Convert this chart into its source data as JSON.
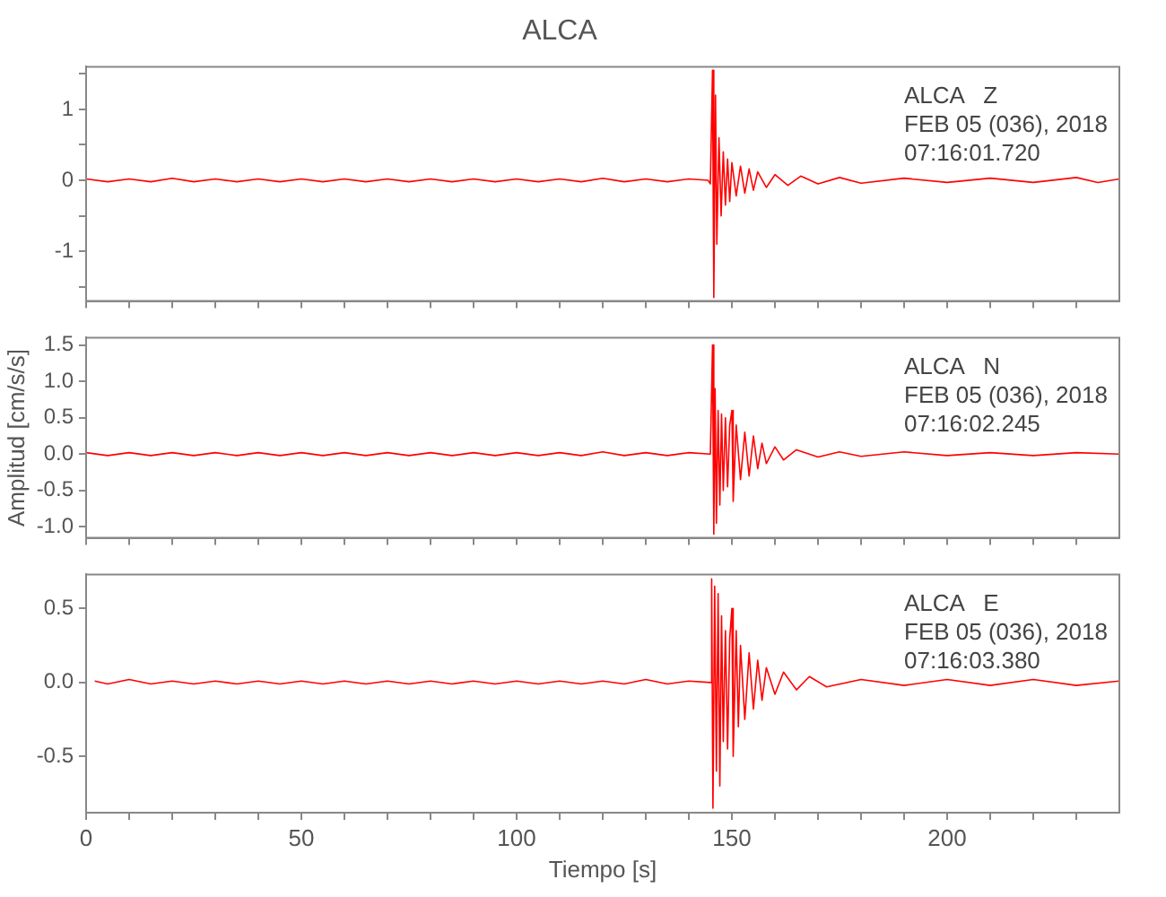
{
  "chart_data": [
    {
      "type": "line",
      "title": "ALCA",
      "annotations": [
        "ALCA   Z",
        "FEB 05 (036), 2018",
        "07:16:01.720"
      ],
      "xlim": [
        0,
        240
      ],
      "xticks": [
        0,
        {
          "value": 10,
          "label": null
        },
        {
          "value": 20,
          "label": null
        },
        {
          "value": 30,
          "label": null
        },
        {
          "value": 40,
          "label": null
        },
        50,
        {
          "value": 60,
          "label": null
        },
        {
          "value": 70,
          "label": null
        },
        {
          "value": 80,
          "label": null
        },
        {
          "value": 90,
          "label": null
        },
        100,
        {
          "value": 110,
          "label": null
        },
        {
          "value": 120,
          "label": null
        },
        {
          "value": 130,
          "label": null
        },
        {
          "value": 140,
          "label": null
        },
        150,
        {
          "value": 160,
          "label": null
        },
        {
          "value": 170,
          "label": null
        },
        {
          "value": 180,
          "label": null
        },
        {
          "value": 190,
          "label": null
        },
        200,
        {
          "value": 210,
          "label": null
        },
        {
          "value": 220,
          "label": null
        },
        {
          "value": 230,
          "label": null
        }
      ],
      "ylim": [
        -1.7,
        1.6
      ],
      "yticks": [
        {
          "value": -1.5,
          "label": null
        },
        -1,
        {
          "value": -0.5,
          "label": null
        },
        0,
        {
          "value": 0.5,
          "label": null
        },
        1,
        {
          "value": 1.5,
          "label": null
        }
      ],
      "tick_labels": "y",
      "series": [
        {
          "color": "#ff0000",
          "x": [
            0,
            5,
            10,
            15,
            20,
            25,
            30,
            35,
            40,
            45,
            50,
            55,
            60,
            65,
            70,
            75,
            80,
            85,
            90,
            95,
            100,
            105,
            110,
            115,
            120,
            125,
            130,
            135,
            140,
            144.5,
            145,
            145.5,
            145.8,
            146.2,
            146.5,
            147,
            147.5,
            148,
            148.5,
            149,
            149.5,
            150,
            151,
            152,
            153,
            154,
            155,
            156,
            158,
            160,
            163,
            166,
            170,
            175,
            180,
            190,
            200,
            210,
            220,
            230,
            235,
            240
          ],
          "values": [
            0.02,
            -0.02,
            0.02,
            -0.02,
            0.03,
            -0.02,
            0.02,
            -0.02,
            0.02,
            -0.02,
            0.02,
            -0.02,
            0.02,
            -0.02,
            0.02,
            -0.02,
            0.02,
            -0.02,
            0.02,
            -0.02,
            0.02,
            -0.02,
            0.02,
            -0.02,
            0.03,
            -0.02,
            0.02,
            -0.02,
            0.02,
            0,
            -0.05,
            1.55,
            -1.65,
            1.2,
            -0.9,
            0.6,
            -0.5,
            0.4,
            -0.35,
            0.3,
            -0.3,
            0.25,
            -0.22,
            0.2,
            -0.18,
            0.16,
            -0.14,
            0.12,
            -0.1,
            0.08,
            -0.07,
            0.06,
            -0.05,
            0.04,
            -0.04,
            0.03,
            -0.03,
            0.03,
            -0.03,
            0.04,
            -0.03,
            0.02
          ]
        }
      ]
    },
    {
      "type": "line",
      "ylabel": "Amplitud [cm/s/s]",
      "annotations": [
        "ALCA   N",
        "FEB 05 (036), 2018",
        "07:16:02.245"
      ],
      "xlim": [
        0,
        240
      ],
      "xticks": [
        0,
        {
          "value": 10,
          "label": null
        },
        {
          "value": 20,
          "label": null
        },
        {
          "value": 30,
          "label": null
        },
        {
          "value": 40,
          "label": null
        },
        50,
        {
          "value": 60,
          "label": null
        },
        {
          "value": 70,
          "label": null
        },
        {
          "value": 80,
          "label": null
        },
        {
          "value": 90,
          "label": null
        },
        100,
        {
          "value": 110,
          "label": null
        },
        {
          "value": 120,
          "label": null
        },
        {
          "value": 130,
          "label": null
        },
        {
          "value": 140,
          "label": null
        },
        150,
        {
          "value": 160,
          "label": null
        },
        {
          "value": 170,
          "label": null
        },
        {
          "value": 180,
          "label": null
        },
        {
          "value": 190,
          "label": null
        },
        200,
        {
          "value": 210,
          "label": null
        },
        {
          "value": 220,
          "label": null
        },
        {
          "value": 230,
          "label": null
        }
      ],
      "ylim": [
        -1.15,
        1.6
      ],
      "yticks": [
        {
          "value": -1,
          "label": "-1.0"
        },
        -0.5,
        {
          "value": 0,
          "label": "0.0"
        },
        0.5,
        {
          "value": 1,
          "label": "1.0"
        },
        1.5
      ],
      "tick_labels": "y",
      "series": [
        {
          "color": "#ff0000",
          "x": [
            0,
            5,
            10,
            15,
            20,
            25,
            30,
            35,
            40,
            45,
            50,
            55,
            60,
            65,
            70,
            75,
            80,
            85,
            90,
            95,
            100,
            105,
            110,
            115,
            120,
            125,
            130,
            135,
            140,
            145,
            145.5,
            145.8,
            146.1,
            146.4,
            146.8,
            147.2,
            147.6,
            148,
            148.5,
            149,
            149.5,
            150,
            150.3,
            151,
            152,
            153,
            154,
            155,
            156,
            157,
            158,
            160,
            162,
            165,
            170,
            175,
            180,
            190,
            200,
            210,
            220,
            230,
            240
          ],
          "values": [
            0.02,
            -0.02,
            0.02,
            -0.02,
            0.02,
            -0.02,
            0.02,
            -0.02,
            0.02,
            -0.02,
            0.02,
            -0.02,
            0.02,
            -0.02,
            0.02,
            -0.02,
            0.02,
            -0.02,
            0.02,
            -0.02,
            0.02,
            -0.02,
            0.02,
            -0.02,
            0.03,
            -0.02,
            0.02,
            -0.02,
            0.02,
            0,
            1.5,
            -1.1,
            0.9,
            -0.95,
            0.6,
            -0.7,
            0.55,
            -0.5,
            0.5,
            -0.45,
            0.4,
            0.6,
            -0.65,
            0.4,
            -0.35,
            0.3,
            -0.3,
            0.25,
            -0.2,
            0.15,
            -0.13,
            0.1,
            -0.08,
            0.06,
            -0.04,
            0.03,
            -0.03,
            0.03,
            -0.02,
            0.02,
            -0.02,
            0.02,
            0
          ]
        }
      ]
    },
    {
      "type": "line",
      "xlabel": "Tiempo [s]",
      "annotations": [
        "ALCA   E",
        "FEB 05 (036), 2018",
        "07:16:03.380"
      ],
      "xlim": [
        0,
        240
      ],
      "xticks": [
        0,
        {
          "value": 10,
          "label": null
        },
        {
          "value": 20,
          "label": null
        },
        {
          "value": 30,
          "label": null
        },
        {
          "value": 40,
          "label": null
        },
        50,
        {
          "value": 60,
          "label": null
        },
        {
          "value": 70,
          "label": null
        },
        {
          "value": 80,
          "label": null
        },
        {
          "value": 90,
          "label": null
        },
        100,
        {
          "value": 110,
          "label": null
        },
        {
          "value": 120,
          "label": null
        },
        {
          "value": 130,
          "label": null
        },
        {
          "value": 140,
          "label": null
        },
        150,
        {
          "value": 160,
          "label": null
        },
        {
          "value": 170,
          "label": null
        },
        {
          "value": 180,
          "label": null
        },
        {
          "value": 190,
          "label": null
        },
        200,
        {
          "value": 210,
          "label": null
        },
        {
          "value": 220,
          "label": null
        },
        {
          "value": 230,
          "label": null
        }
      ],
      "ylim": [
        -0.88,
        0.73
      ],
      "yticks": [
        -0.5,
        {
          "value": 0,
          "label": "0.0"
        },
        0.5
      ],
      "series": [
        {
          "color": "#ff0000",
          "x": [
            2,
            5,
            10,
            15,
            20,
            25,
            30,
            35,
            40,
            45,
            50,
            55,
            60,
            65,
            70,
            75,
            80,
            85,
            90,
            95,
            100,
            105,
            110,
            115,
            120,
            125,
            130,
            135,
            140,
            145,
            145.3,
            145.6,
            146,
            146.4,
            146.8,
            147.2,
            147.6,
            148,
            148.5,
            149,
            149.5,
            150,
            150.3,
            151,
            151.5,
            152,
            153,
            154,
            155,
            156,
            157,
            158,
            160,
            162,
            165,
            168,
            172,
            180,
            190,
            200,
            210,
            220,
            230,
            240
          ],
          "values": [
            0.01,
            -0.01,
            0.02,
            -0.01,
            0.01,
            -0.01,
            0.01,
            -0.01,
            0.01,
            -0.01,
            0.01,
            -0.01,
            0.01,
            -0.01,
            0.01,
            -0.01,
            0.01,
            -0.01,
            0.01,
            -0.01,
            0.01,
            -0.01,
            0.01,
            -0.01,
            0.01,
            -0.01,
            0.02,
            -0.01,
            0.01,
            0,
            0.7,
            -0.85,
            0.65,
            -0.6,
            0.6,
            -0.7,
            0.45,
            -0.4,
            0.35,
            -0.45,
            0.3,
            0.5,
            -0.5,
            0.35,
            -0.3,
            0.25,
            -0.25,
            0.2,
            -0.18,
            0.15,
            -0.12,
            0.1,
            -0.08,
            0.07,
            -0.05,
            0.04,
            -0.03,
            0.02,
            -0.02,
            0.02,
            -0.02,
            0.02,
            -0.02,
            0.01
          ]
        }
      ]
    }
  ]
}
